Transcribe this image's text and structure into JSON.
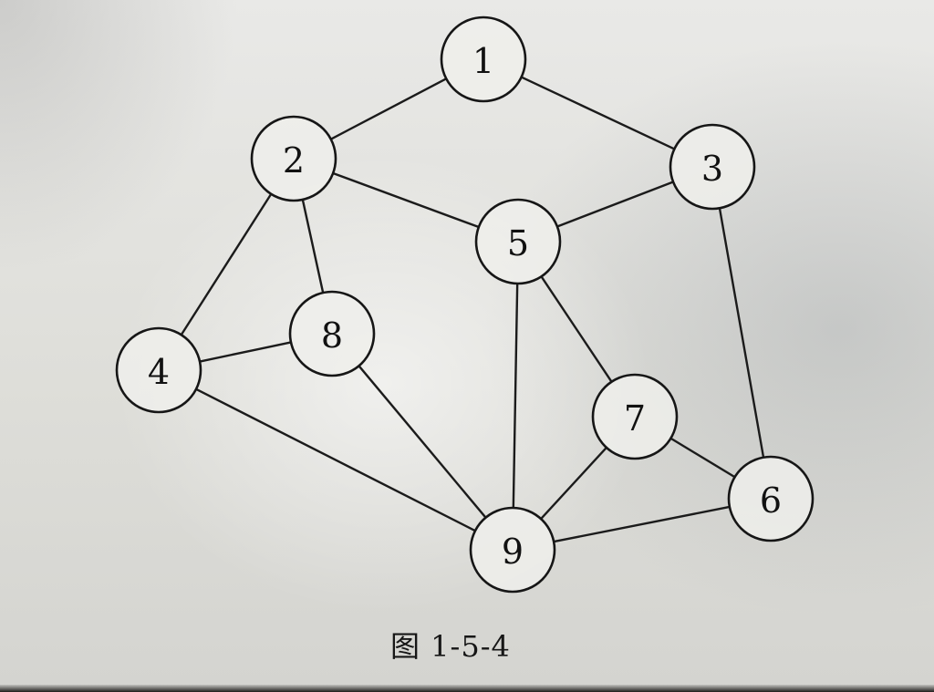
{
  "figure": {
    "caption": "图 1-5-4",
    "nodes": [
      {
        "id": "1",
        "label": "1"
      },
      {
        "id": "2",
        "label": "2"
      },
      {
        "id": "3",
        "label": "3"
      },
      {
        "id": "4",
        "label": "4"
      },
      {
        "id": "5",
        "label": "5"
      },
      {
        "id": "6",
        "label": "6"
      },
      {
        "id": "7",
        "label": "7"
      },
      {
        "id": "8",
        "label": "8"
      },
      {
        "id": "9",
        "label": "9"
      }
    ],
    "edges": [
      [
        "1",
        "2"
      ],
      [
        "1",
        "3"
      ],
      [
        "2",
        "5"
      ],
      [
        "3",
        "5"
      ],
      [
        "2",
        "4"
      ],
      [
        "2",
        "8"
      ],
      [
        "3",
        "6"
      ],
      [
        "4",
        "8"
      ],
      [
        "4",
        "9"
      ],
      [
        "8",
        "9"
      ],
      [
        "5",
        "9"
      ],
      [
        "5",
        "7"
      ],
      [
        "7",
        "9"
      ],
      [
        "7",
        "6"
      ],
      [
        "9",
        "6"
      ]
    ]
  }
}
